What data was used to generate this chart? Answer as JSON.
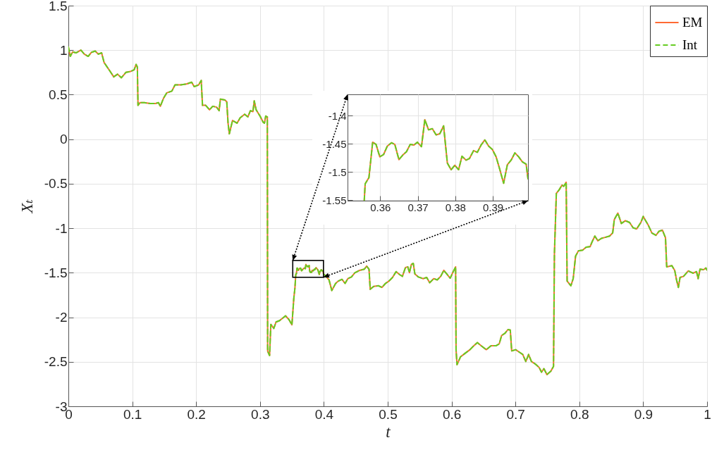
{
  "chart_data": [
    {
      "type": "line",
      "xlabel": "t",
      "ylabel": "Xₜ",
      "xlim": [
        0,
        1
      ],
      "ylim": [
        -3,
        1.5
      ],
      "xticks": [
        0,
        0.1,
        0.2,
        0.3,
        0.4,
        0.5,
        0.6,
        0.7,
        0.8,
        0.9,
        1
      ],
      "yticks": [
        -3,
        -2.5,
        -2,
        -1.5,
        -1,
        -0.5,
        0,
        0.5,
        1,
        1.5
      ],
      "grid": true,
      "legend": "top right",
      "x": [
        0,
        0.003,
        0.0066,
        0.012,
        0.0196,
        0.025,
        0.031,
        0.036,
        0.042,
        0.047,
        0.052,
        0.056,
        0.066,
        0.071,
        0.077,
        0.083,
        0.09,
        0.097,
        0.103,
        0.106,
        0.108,
        0.109,
        0.112,
        0.119,
        0.128,
        0.136,
        0.141,
        0.144,
        0.149,
        0.154,
        0.162,
        0.167,
        0.176,
        0.185,
        0.193,
        0.197,
        0.204,
        0.208,
        0.21,
        0.215,
        0.221,
        0.226,
        0.232,
        0.236,
        0.238,
        0.245,
        0.248,
        0.25,
        0.252,
        0.257,
        0.264,
        0.269,
        0.276,
        0.281,
        0.285,
        0.289,
        0.291,
        0.294,
        0.3,
        0.305,
        0.307,
        0.309,
        0.3115,
        0.312,
        0.315,
        0.317,
        0.3216,
        0.3252,
        0.3308,
        0.3363,
        0.34,
        0.3455,
        0.35,
        0.3529,
        0.3547,
        0.35575,
        0.356,
        0.357,
        0.358,
        0.3589,
        0.3599,
        0.3609,
        0.3619,
        0.363,
        0.3639,
        0.365,
        0.366,
        0.367,
        0.368,
        0.369,
        0.3699,
        0.371,
        0.3719,
        0.3729,
        0.3739,
        0.3749,
        0.3759,
        0.3769,
        0.3779,
        0.3789,
        0.3799,
        0.3809,
        0.3818,
        0.3829,
        0.3838,
        0.3849,
        0.3859,
        0.3869,
        0.3879,
        0.3889,
        0.3899,
        0.3909,
        0.3919,
        0.3929,
        0.3939,
        0.3949,
        0.3959,
        0.3969,
        0.3979,
        0.3989,
        0.3994,
        0.4015,
        0.4081,
        0.4125,
        0.4184,
        0.4228,
        0.4284,
        0.4332,
        0.4376,
        0.4431,
        0.4486,
        0.456,
        0.4634,
        0.467,
        0.4707,
        0.4726,
        0.478,
        0.4855,
        0.491,
        0.4965,
        0.502,
        0.5075,
        0.5131,
        0.5186,
        0.523,
        0.5278,
        0.5315,
        0.534,
        0.537,
        0.54,
        0.5425,
        0.5481,
        0.5555,
        0.561,
        0.5657,
        0.572,
        0.5775,
        0.583,
        0.5878,
        0.5923,
        0.5978,
        0.6026,
        0.6063,
        0.607,
        0.6085,
        0.614,
        0.6213,
        0.6287,
        0.6342,
        0.6404,
        0.647,
        0.6544,
        0.6618,
        0.6699,
        0.6746,
        0.6783,
        0.6838,
        0.6882,
        0.6919,
        0.6941,
        0.7004,
        0.7059,
        0.7114,
        0.7162,
        0.7206,
        0.725,
        0.7309,
        0.7371,
        0.7408,
        0.7445,
        0.7493,
        0.7555,
        0.7596,
        0.761,
        0.764,
        0.7684,
        0.7728,
        0.7757,
        0.7794,
        0.7809,
        0.7868,
        0.7904,
        0.7941,
        0.7985,
        0.8051,
        0.8107,
        0.8169,
        0.8199,
        0.8243,
        0.829,
        0.8346,
        0.8412,
        0.8474,
        0.8522,
        0.8548,
        0.8603,
        0.8658,
        0.8721,
        0.8787,
        0.8842,
        0.8897,
        0.8963,
        0.9,
        0.9037,
        0.9081,
        0.9136,
        0.9199,
        0.9246,
        0.9301,
        0.9349,
        0.9368,
        0.9449,
        0.9493,
        0.9522,
        0.9551,
        0.9577,
        0.9632,
        0.9706,
        0.9779,
        0.9835,
        0.986,
        0.989,
        0.9945,
        0.9982,
        1
      ],
      "series": [
        {
          "name": "EM",
          "color": "#ff6a33",
          "line_style": "solid",
          "values": [
            1.035,
            0.93,
            0.98,
            0.97,
            1.0,
            0.955,
            0.93,
            0.975,
            0.99,
            0.955,
            0.97,
            0.86,
            0.755,
            0.7,
            0.73,
            0.69,
            0.75,
            0.76,
            0.78,
            0.84,
            0.81,
            0.38,
            0.41,
            0.41,
            0.4,
            0.4,
            0.41,
            0.37,
            0.46,
            0.52,
            0.54,
            0.61,
            0.61,
            0.62,
            0.64,
            0.59,
            0.61,
            0.66,
            0.38,
            0.38,
            0.33,
            0.37,
            0.36,
            0.32,
            0.45,
            0.44,
            0.42,
            0.18,
            0.06,
            0.21,
            0.18,
            0.24,
            0.28,
            0.25,
            0.32,
            0.31,
            0.43,
            0.33,
            0.26,
            0.19,
            0.18,
            0.26,
            0.25,
            -2.38,
            -2.43,
            -2.08,
            -2.125,
            -2.053,
            -2.037,
            -2.005,
            -1.984,
            -2.027,
            -2.085,
            -1.793,
            -1.673,
            -1.551,
            -1.521,
            -1.51,
            -1.447,
            -1.451,
            -1.473,
            -1.469,
            -1.454,
            -1.448,
            -1.451,
            -1.478,
            -1.47,
            -1.464,
            -1.451,
            -1.452,
            -1.447,
            -1.455,
            -1.407,
            -1.425,
            -1.423,
            -1.434,
            -1.432,
            -1.418,
            -1.484,
            -1.496,
            -1.488,
            -1.496,
            -1.472,
            -1.479,
            -1.476,
            -1.462,
            -1.465,
            -1.452,
            -1.443,
            -1.454,
            -1.46,
            -1.473,
            -1.496,
            -1.52,
            -1.487,
            -1.479,
            -1.466,
            -1.473,
            -1.482,
            -1.486,
            -1.512,
            -1.527,
            -1.58,
            -1.7,
            -1.62,
            -1.593,
            -1.574,
            -1.62,
            -1.566,
            -1.548,
            -1.5,
            -1.473,
            -1.46,
            -1.425,
            -1.46,
            -1.686,
            -1.654,
            -1.646,
            -1.665,
            -1.62,
            -1.593,
            -1.553,
            -1.487,
            -1.521,
            -1.54,
            -1.441,
            -1.434,
            -1.5,
            -1.407,
            -1.394,
            -1.513,
            -1.548,
            -1.566,
            -1.553,
            -1.612,
            -1.566,
            -1.58,
            -1.54,
            -1.473,
            -1.513,
            -1.561,
            -1.487,
            -1.434,
            -2.364,
            -2.532,
            -2.444,
            -2.404,
            -2.364,
            -2.324,
            -2.285,
            -2.324,
            -2.364,
            -2.319,
            -2.319,
            -2.298,
            -2.205,
            -2.178,
            -2.138,
            -2.144,
            -2.378,
            -2.364,
            -2.391,
            -2.418,
            -2.497,
            -2.418,
            -2.497,
            -2.524,
            -2.564,
            -2.617,
            -2.577,
            -2.644,
            -2.604,
            -2.551,
            -1.287,
            -0.609,
            -0.569,
            -0.516,
            -0.529,
            -0.484,
            -1.593,
            -1.646,
            -1.566,
            -1.314,
            -1.255,
            -1.247,
            -1.213,
            -1.207,
            -1.154,
            -1.088,
            -1.141,
            -1.114,
            -1.101,
            -1.088,
            -1.053,
            -0.902,
            -0.83,
            -0.947,
            -0.915,
            -0.936,
            -0.995,
            -1.008,
            -0.936,
            -0.867,
            -0.915,
            -0.968,
            -1.053,
            -1.08,
            -1.035,
            -1.021,
            -1.106,
            -1.434,
            -1.42,
            -1.473,
            -1.58,
            -1.665,
            -1.553,
            -1.54,
            -1.479,
            -1.505,
            -1.487,
            -1.566,
            -1.46,
            -1.466,
            -1.447,
            -1.47
          ]
        },
        {
          "name": "Int",
          "color": "#66cc22",
          "line_style": "dashed",
          "values": [
            1.035,
            0.93,
            0.98,
            0.97,
            1.0,
            0.955,
            0.93,
            0.975,
            0.99,
            0.955,
            0.97,
            0.86,
            0.755,
            0.7,
            0.73,
            0.69,
            0.75,
            0.76,
            0.78,
            0.84,
            0.81,
            0.38,
            0.41,
            0.41,
            0.4,
            0.4,
            0.41,
            0.37,
            0.46,
            0.52,
            0.54,
            0.61,
            0.61,
            0.62,
            0.64,
            0.59,
            0.61,
            0.66,
            0.38,
            0.38,
            0.33,
            0.37,
            0.36,
            0.32,
            0.45,
            0.44,
            0.42,
            0.18,
            0.06,
            0.21,
            0.18,
            0.24,
            0.28,
            0.25,
            0.32,
            0.31,
            0.43,
            0.33,
            0.26,
            0.19,
            0.18,
            0.26,
            0.25,
            -2.38,
            -2.43,
            -2.08,
            -2.125,
            -2.053,
            -2.037,
            -2.005,
            -1.984,
            -2.027,
            -2.085,
            -1.793,
            -1.673,
            -1.551,
            -1.521,
            -1.51,
            -1.447,
            -1.451,
            -1.473,
            -1.469,
            -1.454,
            -1.448,
            -1.451,
            -1.478,
            -1.47,
            -1.464,
            -1.451,
            -1.452,
            -1.447,
            -1.455,
            -1.407,
            -1.425,
            -1.423,
            -1.434,
            -1.432,
            -1.418,
            -1.484,
            -1.496,
            -1.488,
            -1.496,
            -1.472,
            -1.479,
            -1.476,
            -1.462,
            -1.465,
            -1.452,
            -1.443,
            -1.454,
            -1.46,
            -1.473,
            -1.496,
            -1.52,
            -1.487,
            -1.479,
            -1.466,
            -1.473,
            -1.482,
            -1.486,
            -1.512,
            -1.527,
            -1.58,
            -1.7,
            -1.62,
            -1.593,
            -1.574,
            -1.62,
            -1.566,
            -1.548,
            -1.5,
            -1.473,
            -1.46,
            -1.425,
            -1.46,
            -1.686,
            -1.654,
            -1.646,
            -1.665,
            -1.62,
            -1.593,
            -1.553,
            -1.487,
            -1.521,
            -1.54,
            -1.441,
            -1.434,
            -1.5,
            -1.407,
            -1.394,
            -1.513,
            -1.548,
            -1.566,
            -1.553,
            -1.612,
            -1.566,
            -1.58,
            -1.54,
            -1.473,
            -1.513,
            -1.561,
            -1.487,
            -1.434,
            -2.364,
            -2.532,
            -2.444,
            -2.404,
            -2.364,
            -2.324,
            -2.285,
            -2.324,
            -2.364,
            -2.319,
            -2.319,
            -2.298,
            -2.205,
            -2.178,
            -2.138,
            -2.144,
            -2.378,
            -2.364,
            -2.391,
            -2.418,
            -2.497,
            -2.418,
            -2.497,
            -2.524,
            -2.564,
            -2.617,
            -2.577,
            -2.644,
            -2.604,
            -2.551,
            -1.287,
            -0.609,
            -0.569,
            -0.516,
            -0.529,
            -0.484,
            -1.593,
            -1.646,
            -1.566,
            -1.314,
            -1.255,
            -1.247,
            -1.213,
            -1.207,
            -1.154,
            -1.088,
            -1.141,
            -1.114,
            -1.101,
            -1.088,
            -1.053,
            -0.902,
            -0.83,
            -0.947,
            -0.915,
            -0.936,
            -0.995,
            -1.008,
            -0.936,
            -0.867,
            -0.915,
            -0.968,
            -1.053,
            -1.08,
            -1.035,
            -1.021,
            -1.106,
            -1.434,
            -1.42,
            -1.473,
            -1.58,
            -1.665,
            -1.553,
            -1.54,
            -1.479,
            -1.505,
            -1.487,
            -1.566,
            -1.46,
            -1.466,
            -1.447,
            -1.47
          ]
        }
      ]
    },
    {
      "type": "line",
      "xlim": [
        0.3513,
        0.3994
      ],
      "ylim": [
        -1.551,
        -1.362
      ],
      "xticks": [
        0.36,
        0.37,
        0.38,
        0.39
      ],
      "yticks": [
        -1.55,
        -1.5,
        -1.45,
        -1.4
      ],
      "grid": true,
      "x": [
        0.35575,
        0.356,
        0.357,
        0.358,
        0.3589,
        0.3599,
        0.3609,
        0.3619,
        0.363,
        0.3639,
        0.365,
        0.366,
        0.367,
        0.368,
        0.369,
        0.3699,
        0.371,
        0.3719,
        0.3729,
        0.3739,
        0.3749,
        0.3759,
        0.3769,
        0.3779,
        0.3789,
        0.3799,
        0.3809,
        0.3818,
        0.3829,
        0.3838,
        0.3849,
        0.3859,
        0.3869,
        0.3879,
        0.3889,
        0.3899,
        0.3909,
        0.3919,
        0.3929,
        0.3939,
        0.3949,
        0.3959,
        0.3969,
        0.3979,
        0.3989,
        0.3994
      ],
      "series": [
        {
          "color": "#ff6a33",
          "line_style": "solid",
          "values": [
            -1.551,
            -1.521,
            -1.51,
            -1.447,
            -1.451,
            -1.473,
            -1.469,
            -1.454,
            -1.448,
            -1.451,
            -1.478,
            -1.47,
            -1.464,
            -1.451,
            -1.452,
            -1.447,
            -1.455,
            -1.407,
            -1.425,
            -1.423,
            -1.434,
            -1.432,
            -1.418,
            -1.484,
            -1.496,
            -1.488,
            -1.496,
            -1.472,
            -1.479,
            -1.476,
            -1.462,
            -1.465,
            -1.452,
            -1.443,
            -1.454,
            -1.46,
            -1.473,
            -1.496,
            -1.52,
            -1.487,
            -1.479,
            -1.466,
            -1.473,
            -1.482,
            -1.486,
            -1.512
          ]
        },
        {
          "color": "#66cc22",
          "line_style": "dashed",
          "values": [
            -1.551,
            -1.521,
            -1.51,
            -1.447,
            -1.451,
            -1.473,
            -1.469,
            -1.454,
            -1.448,
            -1.451,
            -1.478,
            -1.47,
            -1.464,
            -1.451,
            -1.452,
            -1.447,
            -1.455,
            -1.407,
            -1.425,
            -1.423,
            -1.434,
            -1.432,
            -1.418,
            -1.484,
            -1.496,
            -1.488,
            -1.496,
            -1.472,
            -1.479,
            -1.476,
            -1.462,
            -1.465,
            -1.452,
            -1.443,
            -1.454,
            -1.46,
            -1.473,
            -1.496,
            -1.52,
            -1.487,
            -1.479,
            -1.466,
            -1.473,
            -1.482,
            -1.486,
            -1.512
          ]
        }
      ]
    }
  ]
}
